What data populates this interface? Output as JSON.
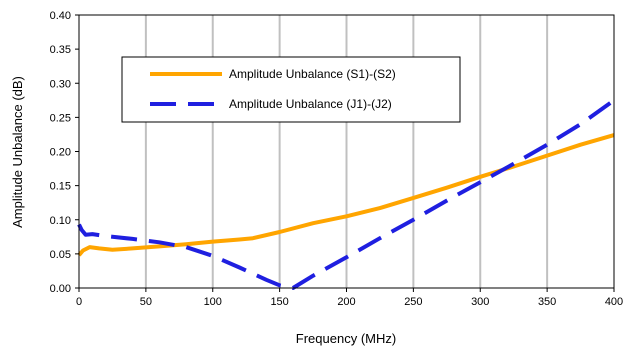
{
  "chart_data": {
    "type": "line",
    "xlabel": "Frequency (MHz)",
    "ylabel": "Amplitude Unbalance (dB)",
    "xlim": [
      0,
      400
    ],
    "ylim": [
      0,
      0.4
    ],
    "x_ticks": [
      "0",
      "50",
      "100",
      "150",
      "200",
      "250",
      "300",
      "350",
      "400"
    ],
    "y_ticks": [
      "0.00",
      "0.05",
      "0.10",
      "0.15",
      "0.20",
      "0.25",
      "0.30",
      "0.35",
      "0.40"
    ],
    "grid": "vertical",
    "legend_position": "upper-left",
    "series": [
      {
        "name": "Amplitude Unbalance (S1)-(S2)",
        "color": "#FFA500",
        "style": "solid",
        "x": [
          0,
          3,
          8,
          15,
          25,
          40,
          60,
          80,
          100,
          120,
          130,
          150,
          175,
          200,
          225,
          250,
          275,
          300,
          325,
          350,
          375,
          400
        ],
        "y": [
          0.048,
          0.055,
          0.06,
          0.058,
          0.056,
          0.058,
          0.061,
          0.064,
          0.068,
          0.071,
          0.073,
          0.082,
          0.095,
          0.105,
          0.117,
          0.132,
          0.147,
          0.163,
          0.178,
          0.194,
          0.21,
          0.224
        ]
      },
      {
        "name": "Amplitude Unbalance (J1)-(J2)",
        "color": "#1F1FE0",
        "style": "dashed",
        "x": [
          0,
          2,
          5,
          10,
          20,
          40,
          60,
          80,
          100,
          120,
          140,
          150,
          160,
          175,
          200,
          225,
          250,
          275,
          300,
          325,
          350,
          375,
          400
        ],
        "y": [
          0.093,
          0.085,
          0.078,
          0.079,
          0.076,
          0.072,
          0.067,
          0.06,
          0.047,
          0.03,
          0.012,
          0.004,
          0.0,
          0.018,
          0.045,
          0.073,
          0.1,
          0.128,
          0.155,
          0.182,
          0.21,
          0.24,
          0.275
        ]
      }
    ]
  }
}
